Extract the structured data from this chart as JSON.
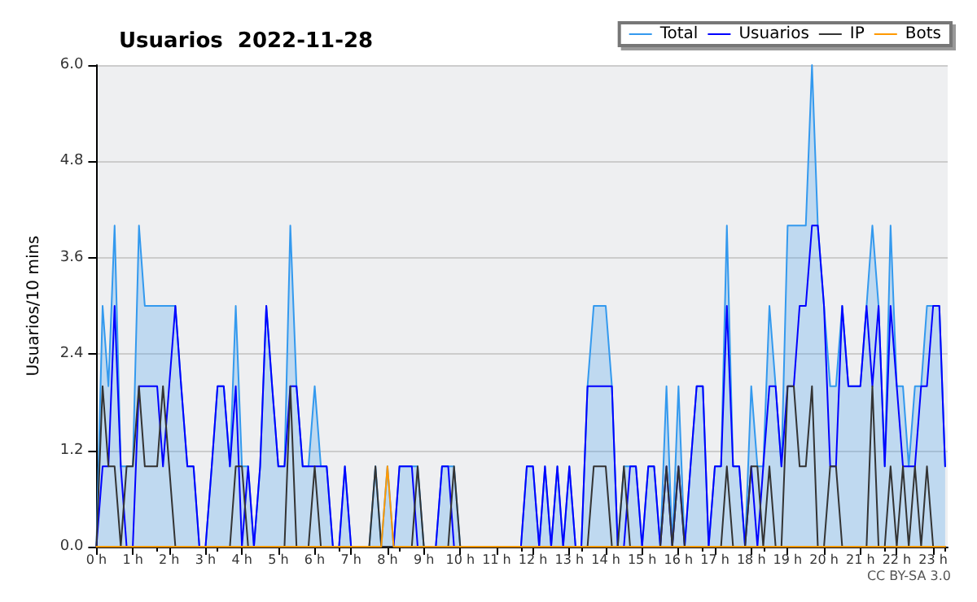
{
  "chart_data": {
    "type": "line",
    "title": "Usuarios  2022-11-28",
    "ylabel": "Usuarios/10 mins",
    "annotations": [
      "CC BY-SA 3.0"
    ],
    "x": [
      0,
      0.17,
      0.33,
      0.5,
      0.67,
      0.83,
      1,
      1.17,
      1.33,
      1.5,
      1.67,
      1.83,
      2,
      2.17,
      2.33,
      2.5,
      2.67,
      2.83,
      3,
      3.17,
      3.33,
      3.5,
      3.67,
      3.83,
      4,
      4.17,
      4.33,
      4.5,
      4.67,
      4.83,
      5,
      5.17,
      5.33,
      5.5,
      5.67,
      5.83,
      6,
      6.17,
      6.33,
      6.5,
      6.67,
      6.83,
      7,
      7.17,
      7.33,
      7.5,
      7.67,
      7.83,
      8,
      8.17,
      8.33,
      8.5,
      8.67,
      8.83,
      9,
      9.17,
      9.33,
      9.5,
      9.67,
      9.83,
      10,
      10.17,
      10.33,
      10.5,
      10.67,
      10.83,
      11,
      11.17,
      11.33,
      11.5,
      11.67,
      11.83,
      12,
      12.17,
      12.33,
      12.5,
      12.67,
      12.83,
      13,
      13.17,
      13.33,
      13.5,
      13.67,
      13.83,
      14,
      14.17,
      14.33,
      14.5,
      14.67,
      14.83,
      15,
      15.17,
      15.33,
      15.5,
      15.67,
      15.83,
      16,
      16.17,
      16.33,
      16.5,
      16.67,
      16.83,
      17,
      17.17,
      17.33,
      17.5,
      17.67,
      17.83,
      18,
      18.17,
      18.33,
      18.5,
      18.67,
      18.83,
      19,
      19.17,
      19.33,
      19.5,
      19.67,
      19.83,
      20,
      20.17,
      20.33,
      20.5,
      20.67,
      20.83,
      21,
      21.17,
      21.33,
      21.5,
      21.67,
      21.83,
      22,
      22.17,
      22.33,
      22.5,
      22.67,
      22.83,
      23,
      23.17,
      23.33
    ],
    "series": [
      {
        "name": "Total",
        "type": "area",
        "color": "#3399ee",
        "values": [
          0,
          3,
          2,
          4,
          1,
          1,
          1,
          4,
          3,
          3,
          3,
          3,
          3,
          3,
          2,
          1,
          1,
          0,
          0,
          1,
          2,
          2,
          1,
          3,
          1,
          1,
          0,
          1,
          3,
          2,
          1,
          1,
          4,
          2,
          1,
          1,
          2,
          1,
          1,
          0,
          0,
          1,
          0,
          0,
          0,
          0,
          1,
          0,
          1,
          0,
          1,
          1,
          1,
          1,
          0,
          0,
          0,
          1,
          1,
          1,
          0,
          0,
          0,
          0,
          0,
          0,
          0,
          0,
          0,
          0,
          0,
          1,
          1,
          0,
          1,
          0,
          1,
          0,
          1,
          0,
          0,
          2,
          3,
          3,
          3,
          2,
          0,
          1,
          1,
          1,
          0,
          1,
          1,
          0,
          2,
          0,
          2,
          0,
          1,
          2,
          2,
          0,
          1,
          1,
          4,
          1,
          1,
          0,
          2,
          1,
          1,
          3,
          2,
          1,
          4,
          4,
          4,
          4,
          6,
          4,
          3,
          2,
          2,
          3,
          2,
          2,
          2,
          3,
          4,
          3,
          1,
          4,
          2,
          2,
          1,
          2,
          2,
          3,
          3,
          3,
          1
        ]
      },
      {
        "name": "Usuarios",
        "color": "#0000ff",
        "values": [
          0,
          1,
          1,
          3,
          1,
          0,
          0,
          2,
          2,
          2,
          2,
          1,
          2,
          3,
          2,
          1,
          1,
          0,
          0,
          1,
          2,
          2,
          1,
          2,
          0,
          1,
          0,
          1,
          3,
          2,
          1,
          1,
          2,
          2,
          1,
          1,
          1,
          1,
          1,
          0,
          0,
          1,
          0,
          0,
          0,
          0,
          0,
          0,
          0,
          0,
          1,
          1,
          1,
          0,
          0,
          0,
          0,
          1,
          1,
          0,
          0,
          0,
          0,
          0,
          0,
          0,
          0,
          0,
          0,
          0,
          0,
          1,
          1,
          0,
          1,
          0,
          1,
          0,
          1,
          0,
          0,
          2,
          2,
          2,
          2,
          2,
          0,
          0,
          1,
          1,
          0,
          1,
          1,
          0,
          1,
          0,
          1,
          0,
          1,
          2,
          2,
          0,
          1,
          1,
          3,
          1,
          1,
          0,
          1,
          0,
          1,
          2,
          2,
          1,
          2,
          2,
          3,
          3,
          4,
          4,
          3,
          1,
          1,
          3,
          2,
          2,
          2,
          3,
          2,
          3,
          1,
          3,
          2,
          1,
          1,
          1,
          2,
          2,
          3,
          3,
          1
        ]
      },
      {
        "name": "IP",
        "color": "#333333",
        "values": [
          0,
          2,
          1,
          1,
          0,
          1,
          1,
          2,
          1,
          1,
          1,
          2,
          1,
          0,
          0,
          0,
          0,
          0,
          0,
          0,
          0,
          0,
          0,
          1,
          1,
          0,
          0,
          0,
          0,
          0,
          0,
          0,
          2,
          0,
          0,
          0,
          1,
          0,
          0,
          0,
          0,
          0,
          0,
          0,
          0,
          0,
          1,
          0,
          0,
          0,
          0,
          0,
          0,
          1,
          0,
          0,
          0,
          0,
          0,
          1,
          0,
          0,
          0,
          0,
          0,
          0,
          0,
          0,
          0,
          0,
          0,
          0,
          0,
          0,
          0,
          0,
          0,
          0,
          0,
          0,
          0,
          0,
          1,
          1,
          1,
          0,
          0,
          1,
          0,
          0,
          0,
          0,
          0,
          0,
          1,
          0,
          1,
          0,
          0,
          0,
          0,
          0,
          0,
          0,
          1,
          0,
          0,
          0,
          1,
          1,
          0,
          1,
          0,
          0,
          2,
          2,
          1,
          1,
          2,
          0,
          0,
          1,
          1,
          0,
          0,
          0,
          0,
          0,
          2,
          0,
          0,
          1,
          0,
          1,
          0,
          1,
          0,
          1,
          0,
          0,
          0
        ]
      },
      {
        "name": "Bots",
        "color": "#ff9900",
        "values": [
          0,
          0,
          0,
          0,
          0,
          0,
          0,
          0,
          0,
          0,
          0,
          0,
          0,
          0,
          0,
          0,
          0,
          0,
          0,
          0,
          0,
          0,
          0,
          0,
          0,
          0,
          0,
          0,
          0,
          0,
          0,
          0,
          0,
          0,
          0,
          0,
          0,
          0,
          0,
          0,
          0,
          0,
          0,
          0,
          0,
          0,
          0,
          0,
          1,
          0,
          0,
          0,
          0,
          0,
          0,
          0,
          0,
          0,
          0,
          0,
          0,
          0,
          0,
          0,
          0,
          0,
          0,
          0,
          0,
          0,
          0,
          0,
          0,
          0,
          0,
          0,
          0,
          0,
          0,
          0,
          0,
          0,
          0,
          0,
          0,
          0,
          0,
          0,
          0,
          0,
          0,
          0,
          0,
          0,
          0,
          0,
          0,
          0,
          0,
          0,
          0,
          0,
          0,
          0,
          0,
          0,
          0,
          0,
          0,
          0,
          0,
          0,
          0,
          0,
          0,
          0,
          0,
          0,
          0,
          0,
          0,
          0,
          0,
          0,
          0,
          0,
          0,
          0,
          0,
          0,
          0,
          0,
          0,
          0,
          0,
          0,
          0,
          0,
          0,
          0,
          0
        ]
      }
    ],
    "xlim": [
      0,
      23.4
    ],
    "xticks": [
      {
        "value": 0,
        "label": "0 h"
      },
      {
        "value": 1,
        "label": "1 h"
      },
      {
        "value": 2,
        "label": "2 h"
      },
      {
        "value": 3,
        "label": "3 h"
      },
      {
        "value": 4,
        "label": "4 h"
      },
      {
        "value": 5,
        "label": "5 h"
      },
      {
        "value": 6,
        "label": "6 h"
      },
      {
        "value": 7,
        "label": "7 h"
      },
      {
        "value": 8,
        "label": "8 h"
      },
      {
        "value": 9,
        "label": "9 h"
      },
      {
        "value": 10,
        "label": "10 h"
      },
      {
        "value": 11,
        "label": "11 h"
      },
      {
        "value": 12,
        "label": "12 h"
      },
      {
        "value": 13,
        "label": "13 h"
      },
      {
        "value": 14,
        "label": "14 h"
      },
      {
        "value": 15,
        "label": "15 h"
      },
      {
        "value": 16,
        "label": "16 h"
      },
      {
        "value": 17,
        "label": "17 h"
      },
      {
        "value": 18,
        "label": "18 h"
      },
      {
        "value": 19,
        "label": "19 h"
      },
      {
        "value": 20,
        "label": "20 h"
      },
      {
        "value": 21,
        "label": "21 h"
      },
      {
        "value": 22,
        "label": "22 h"
      },
      {
        "value": 23,
        "label": "23 h"
      }
    ],
    "ylim": [
      0,
      6
    ],
    "yticks": [
      {
        "value": 0,
        "label": "0.0"
      },
      1.2,
      2.4,
      3.6,
      4.8,
      {
        "value": 6,
        "label": "6.0"
      }
    ],
    "grid": "y",
    "legend": "top right",
    "marker": "none",
    "line_style": "solid"
  }
}
